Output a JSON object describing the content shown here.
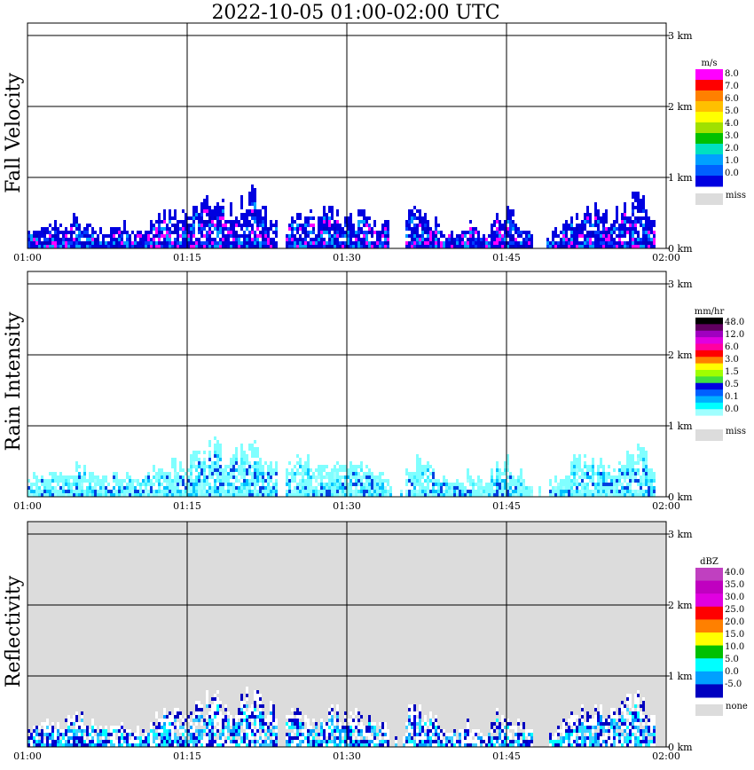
{
  "chart_data": {
    "type": "heatmap",
    "title": "2022-10-05   01:00-02:00 UTC",
    "x_ticks": [
      "01:00",
      "01:15",
      "01:30",
      "01:45",
      "02:00"
    ],
    "xlim": [
      "01:00",
      "02:00"
    ],
    "y_ticks": [
      "0 km",
      "1 km",
      "2 km",
      "3 km"
    ],
    "ylim_km": [
      0,
      3.0
    ],
    "grid": true,
    "panels": [
      {
        "name": "fall-velocity",
        "ylabel": "Fall Velocity",
        "unit": "m/s",
        "background": "#ffffff",
        "legend_labels": [
          "8.0",
          "7.0",
          "6.0",
          "5.0",
          "4.0",
          "3.0",
          "2.0",
          "1.0",
          "0.0"
        ],
        "legend_colors": [
          "#ff00ff",
          "#ff0000",
          "#ff8000",
          "#ffc000",
          "#ffff00",
          "#a0e000",
          "#00c000",
          "#00e0c0",
          "#00a0ff",
          "#0060ff",
          "#0000e0"
        ],
        "miss_label": "miss",
        "miss_color": "#dcdcdc",
        "echo_colors": [
          "#0000e0",
          "#0000e0",
          "#0000e0",
          "#0000c8",
          "#0040ff",
          "#00a0ff",
          "#ff00ff"
        ]
      },
      {
        "name": "rain-intensity",
        "ylabel": "Rain Intensity",
        "unit": "mm/hr",
        "background": "#ffffff",
        "legend_labels": [
          "48.0",
          "12.0",
          "6.0",
          "3.0",
          "1.5",
          "0.5",
          "0.1",
          "0.0"
        ],
        "legend_colors": [
          "#000000",
          "#600060",
          "#a000c0",
          "#e000e0",
          "#ff00a0",
          "#ff0000",
          "#ff8000",
          "#ffff00",
          "#a0ff00",
          "#40e040",
          "#0000e0",
          "#0060ff",
          "#00b0ff",
          "#00ffff",
          "#a0ffff",
          "#ffffff"
        ],
        "miss_label": "miss",
        "miss_color": "#dcdcdc",
        "echo_colors": [
          "#80ffff",
          "#80ffff",
          "#80ffff",
          "#a0ffff",
          "#40f0ff",
          "#00c0ff",
          "#0040e0"
        ]
      },
      {
        "name": "reflectivity",
        "ylabel": "Reflectivity",
        "unit": "dBZ",
        "background": "#dcdcdc",
        "legend_labels": [
          "40.0",
          "35.0",
          "30.0",
          "25.0",
          "20.0",
          "15.0",
          "10.0",
          "5.0",
          "0.0",
          "-5.0"
        ],
        "legend_colors": [
          "#c040c0",
          "#c000c0",
          "#e000e0",
          "#ff0000",
          "#ff8000",
          "#ffff00",
          "#00c000",
          "#00ffff",
          "#00a0ff",
          "#0000c0"
        ],
        "miss_label": "none",
        "miss_color": "#dcdcdc",
        "echo_colors": [
          "#ffffff",
          "#ffffff",
          "#0000c0",
          "#0000e0",
          "#00a0ff",
          "#40d0ff",
          "#00ffff"
        ]
      }
    ],
    "echo_top_km": [
      0.25,
      0.3,
      0.35,
      0.35,
      0.3,
      0.4,
      0.45,
      0.35,
      0.3,
      0.25,
      0.3,
      0.35,
      0.3,
      0.25,
      0.3,
      0.45,
      0.55,
      0.5,
      0.45,
      0.55,
      0.6,
      0.7,
      0.75,
      0.6,
      0.55,
      0.7,
      0.8,
      0.75,
      0.6,
      0.5,
      0.0,
      0.45,
      0.55,
      0.5,
      0.45,
      0.5,
      0.55,
      0.45,
      0.5,
      0.5,
      0.4,
      0.3,
      0.35,
      0.0,
      0.0,
      0.5,
      0.55,
      0.45,
      0.4,
      0.25,
      0.2,
      0.2,
      0.35,
      0.25,
      0.15,
      0.4,
      0.55,
      0.5,
      0.35,
      0.2,
      0.0,
      0.0,
      0.2,
      0.3,
      0.45,
      0.55,
      0.5,
      0.55,
      0.5,
      0.45,
      0.55,
      0.65,
      0.7,
      0.6,
      0.35
    ]
  }
}
